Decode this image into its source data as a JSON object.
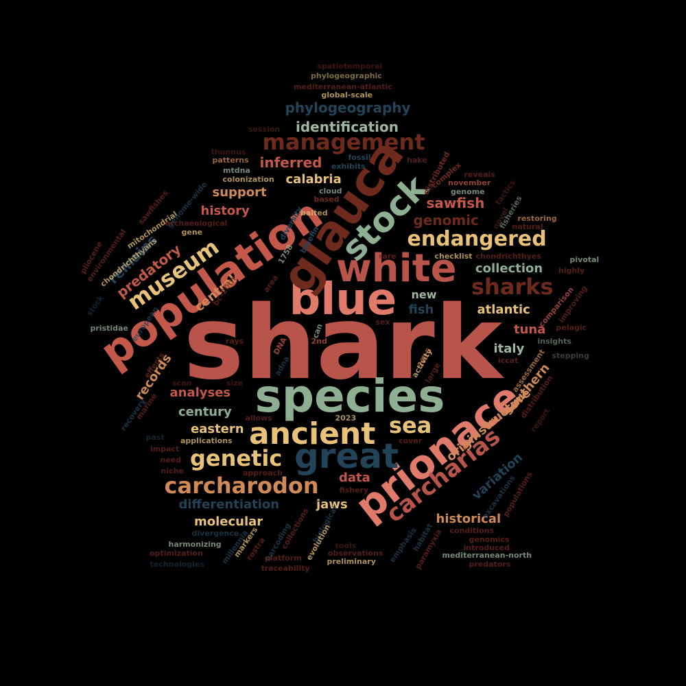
{
  "words": [
    "shark",
    "species",
    "blue",
    "glauca",
    "population",
    "white",
    "prionace",
    "stock",
    "ancient",
    "great",
    "carcharias",
    "management",
    "endangered",
    "sharks",
    "museum",
    "genetic",
    "carcharodon",
    "sea",
    "phylogeography",
    "identification",
    "inferred",
    "calabria",
    "support",
    "history",
    "sawfish",
    "genomic",
    "collection",
    "predatory",
    "remains",
    "central",
    "new",
    "fish",
    "atlantic",
    "tuna",
    "italy",
    "records",
    "analyses",
    "century",
    "eastern",
    "data",
    "southern",
    "originstructure",
    "variation",
    "differentiation",
    "jaws",
    "molecular",
    "historical",
    "spatiotemporal",
    "phylogeographic",
    "mediterranean-atlantic",
    "global-scale",
    "session",
    "thunnus",
    "patterns",
    "mtdna",
    "colonization",
    "fossil",
    "exhibits",
    "cloud",
    "based",
    "hake",
    "reveals",
    "november",
    "genome",
    "distributed",
    "complex",
    "tactics",
    "sawfishes",
    "mitochondrial",
    "genome-wide",
    "archaeological",
    "gene",
    "diversity",
    "baited",
    "bluefin",
    "1758",
    "rare",
    "checklist",
    "chondrichthyes",
    "restoring",
    "natural",
    "novel",
    "fisheries",
    "pliocene",
    "environmental",
    "chondrichthyans",
    "pivotal",
    "highly",
    "comparison",
    "improving",
    "insights",
    "pelagic",
    "stepping",
    "iccat",
    "pristidae",
    "stock",
    "european",
    "area",
    "bc–20th",
    "sex",
    "can",
    "2nd",
    "rays",
    "DNA",
    "adna",
    "effects",
    "scan",
    "size",
    "2015",
    "activity",
    "large",
    "assessment",
    "distribution",
    "marine",
    "allows",
    "2023",
    "recovery",
    "past",
    "applications",
    "cover",
    "impact",
    "need",
    "niche",
    "approach",
    "fishery",
    "report",
    "divergence",
    "harmonizing",
    "optimization",
    "technologies",
    "millennia",
    "rostra",
    "markers",
    "barcoding",
    "collections",
    "biological",
    "evolution",
    "tools",
    "observations",
    "preliminary",
    "platform",
    "traceability",
    "emphasis",
    "habitat",
    "paramyxia",
    "mediterranean-north",
    "introduced",
    "genomics",
    "conditions",
    "excavations",
    "populations",
    "predators"
  ],
  "colors": {
    "background": "#000000",
    "brick_red": "#b9544b",
    "salmon": "#e07b6c",
    "sage": "#8eaf92",
    "sand": "#e9c27a",
    "navy": "#234458",
    "brown": "#6f2a1e",
    "tan": "#cf8a57"
  }
}
